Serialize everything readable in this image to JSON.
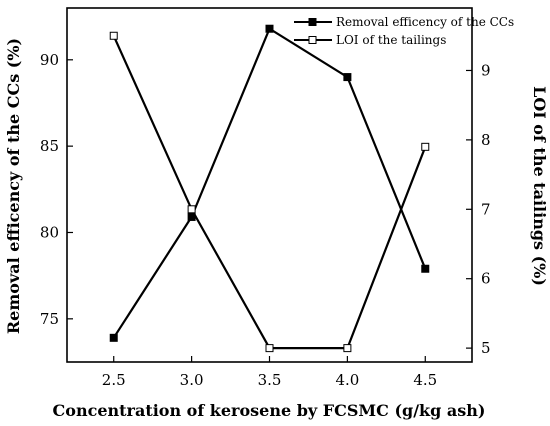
{
  "chart_data": {
    "type": "line",
    "xlabel": "Concentration of kerosene by FCSMC (g/kg ash)",
    "ylabel_left": "Removal efficency of the CCs (%)",
    "ylabel_right": "LOI of the tailings (%)",
    "x_ticks": [
      "2.5",
      "3.0",
      "3.5",
      "4.0",
      "4.5"
    ],
    "y_left_ticks": [
      "75",
      "80",
      "85",
      "90"
    ],
    "y_right_ticks": [
      "5",
      "6",
      "7",
      "8",
      "9"
    ],
    "xlim": [
      2.2,
      4.8
    ],
    "ylim_left": [
      72.5,
      93.0
    ],
    "ylim_right": [
      4.8,
      9.9
    ],
    "legend_position": "top-right",
    "series": [
      {
        "name": "Removal efficency of the CCs",
        "axis": "left",
        "marker": "filled-square",
        "x": [
          2.5,
          3.0,
          3.5,
          4.0,
          4.5
        ],
        "y": [
          73.9,
          80.9,
          91.8,
          89.0,
          77.9
        ]
      },
      {
        "name": "LOI of the tailings",
        "axis": "right",
        "marker": "open-square",
        "x": [
          2.5,
          3.0,
          3.5,
          4.0,
          4.5
        ],
        "y": [
          9.5,
          7.0,
          5.0,
          5.0,
          7.9
        ]
      }
    ]
  }
}
